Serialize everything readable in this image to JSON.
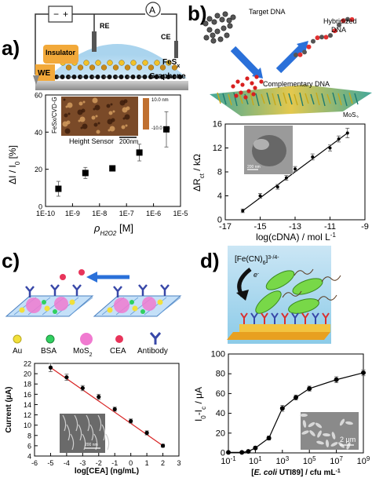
{
  "panels": {
    "a": {
      "letter": "a)",
      "schematic": {
        "labels": {
          "minus": "−",
          "plus": "+",
          "ammeter": "A",
          "re": "RE",
          "ce": "CE",
          "insulator": "Insulator",
          "we": "WE",
          "fesx_base": "FeS",
          "fesx_sub": "x",
          "graphene": "Graphene"
        }
      },
      "inset": {
        "side_label": "FeSx/CVD-G",
        "bottom_label": "Height Sensor",
        "scale_bar": "200nm",
        "colorbar_top": "10.0 nm",
        "colorbar_bottom": "-10.0 nm"
      },
      "chart_data": {
        "type": "scatter",
        "x_scale": "log",
        "x": [
          3e-10,
          3e-09,
          3e-08,
          3e-07,
          3e-06
        ],
        "y": [
          9.5,
          18,
          20.5,
          29,
          41.5
        ],
        "y_err": [
          4,
          3,
          1.5,
          4.5,
          9.5
        ],
        "xlim": [
          1e-10,
          1e-05
        ],
        "ylim": [
          0,
          60
        ],
        "x_ticks": [
          "1E-10",
          "1E-9",
          "1E-8",
          "1E-7",
          "1E-6",
          "1E-5"
        ],
        "y_ticks": [
          "0",
          "20",
          "40",
          "60"
        ],
        "ylabel": "ΔI / I0 [%]",
        "xlabel_main": "ρ",
        "xlabel_sub": "H2O2",
        "xlabel_unit": "[M]"
      }
    },
    "b": {
      "letter": "b)",
      "schematic": {
        "labels": {
          "target": "Target DNA",
          "hybridized_1": "Hybridized",
          "hybridized_2": "DNA",
          "complementary": "Complementary DNA",
          "mos2_base": "MoS",
          "mos2_sub": "2"
        }
      },
      "inset": {
        "scale_bar": "200 nm"
      },
      "chart_data": {
        "type": "line",
        "x": [
          -16,
          -15,
          -14,
          -13.5,
          -13,
          -12,
          -11,
          -10.5,
          -10
        ],
        "y": [
          1.5,
          4,
          5.5,
          7,
          8.5,
          10.5,
          12,
          13.5,
          14.5
        ],
        "y_err": [
          0.3,
          0.4,
          0.4,
          0.4,
          0.4,
          0.5,
          0.5,
          0.5,
          0.8
        ],
        "xlim": [
          -17,
          -9
        ],
        "ylim": [
          0,
          16
        ],
        "x_ticks": [
          "-17",
          "-15",
          "-13",
          "-11",
          "-9"
        ],
        "y_ticks": [
          "0",
          "4",
          "8",
          "12",
          "16"
        ],
        "ylabel": "ΔRct / kΩ",
        "xlabel": "log(cDNA) / mol L-1"
      }
    },
    "c": {
      "letter": "c)",
      "legend": {
        "au": "Au",
        "bsa": "BSA",
        "mos2": "MoS2",
        "cea": "CEA",
        "antibody": "Antibody"
      },
      "inset": {
        "scale_bar": "200 nm"
      },
      "chart_data": {
        "type": "line",
        "x": [
          -5,
          -4,
          -3,
          -2,
          -1,
          0,
          1,
          2
        ],
        "y": [
          21.2,
          19.3,
          17.2,
          15.5,
          13.1,
          10.8,
          8.5,
          6.0
        ],
        "y_err": [
          0.8,
          0.6,
          0.5,
          0.5,
          0.4,
          0.4,
          0.4,
          0.3
        ],
        "xlim": [
          -6,
          3
        ],
        "ylim": [
          4,
          22
        ],
        "x_ticks": [
          "-6",
          "-5",
          "-4",
          "-3",
          "-2",
          "-1",
          "0",
          "1",
          "2",
          "3"
        ],
        "y_ticks": [
          "4",
          "6",
          "8",
          "10",
          "12",
          "14",
          "16",
          "18",
          "20",
          "22"
        ],
        "ylabel": "Current (μA)",
        "xlabel": "log[CEA] (ng/mL)"
      }
    },
    "d": {
      "letter": "d)",
      "schematic": {
        "labels": {
          "redox": "[Fe(CN)6]3-/4-",
          "electron": "e-"
        }
      },
      "inset": {
        "scale_bar": "2 μm"
      },
      "chart_data": {
        "type": "line",
        "x_scale": "log",
        "x": [
          0.1,
          1,
          3,
          10,
          100,
          1000,
          10000,
          100000,
          10000000,
          1000000000
        ],
        "y": [
          0.5,
          0.5,
          1.5,
          5,
          15,
          45,
          56,
          65,
          74,
          81
        ],
        "y_err": [
          0.8,
          0.8,
          1,
          1.5,
          2,
          3,
          2.5,
          2.5,
          3,
          3
        ],
        "xlim": [
          0.1,
          1000000000
        ],
        "ylim": [
          0,
          100
        ],
        "x_ticks": [
          "10-1",
          "101",
          "103",
          "105",
          "107",
          "109"
        ],
        "y_ticks": [
          "0",
          "20",
          "40",
          "60",
          "80",
          "100"
        ],
        "ylabel": "I0-Ic / μA",
        "xlabel": "[E. coli UTI89] / cfu mL-1"
      }
    }
  }
}
